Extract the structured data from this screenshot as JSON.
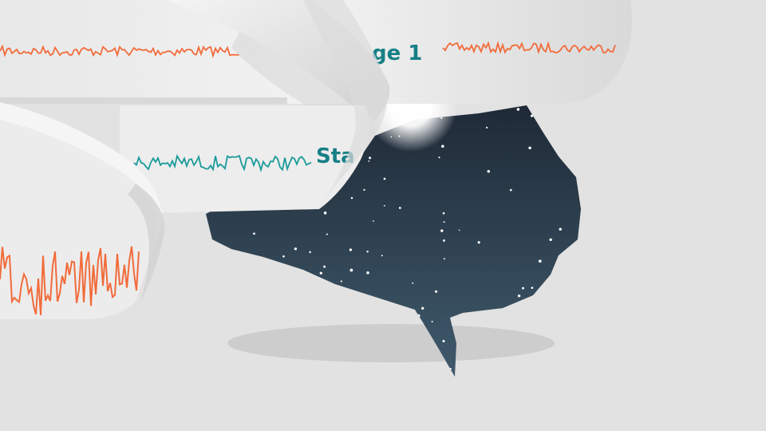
{
  "scene": {
    "description_free": true,
    "colors": {
      "background": "#e2e2e2",
      "ribbon": "#ececec",
      "ribbon_shadow": "#c8c8c8",
      "night_sky_top": "#1f2a37",
      "night_sky_bottom": "#3f5a6c",
      "star": "#ffffff",
      "wave_orange": "#f26b3a",
      "wave_teal": "#1a9a9a",
      "label_teal": "#177f86",
      "ground_shadow": "#cfcfcf"
    }
  },
  "strips": {
    "top_label": "ge 1",
    "middle_label": "Sta"
  },
  "icons": {
    "moon": "moon-glow",
    "brain": "brain-night-sky"
  }
}
